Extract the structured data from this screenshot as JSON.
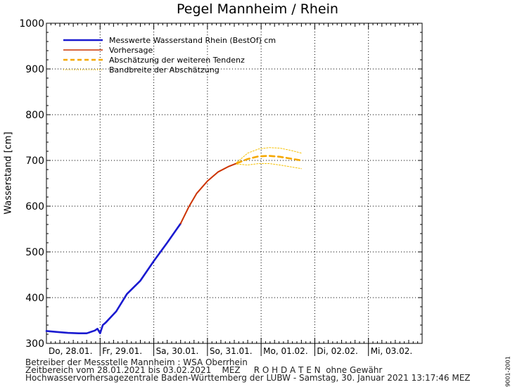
{
  "title": "Pegel Mannheim / Rhein",
  "footer": {
    "line1": "Betreiber der Messstelle Mannheim : WSA Oberrhein",
    "line2": "Zeitbereich vom 28.01.2021 bis 03.02.2021    MEZ     R O H D A T E N  ohne Gewähr",
    "line3": "Hochwasservorhersagezentrale Baden-Württemberg der LUBW - Samstag, 30. Januar 2021 13:17:46 MEZ"
  },
  "side_code": "9001-2001",
  "chart_data": {
    "type": "line",
    "title": "Pegel Mannheim / Rhein",
    "ylabel": "Wasserstand [cm]",
    "xlabel": "",
    "ylim": [
      300,
      1000
    ],
    "yticks": [
      300,
      400,
      500,
      600,
      700,
      800,
      900,
      1000
    ],
    "xlim": [
      0,
      7
    ],
    "x_unit": "days from Do, 28.01. 00:00",
    "day_labels": [
      "Do, 28.01.",
      "Fr, 29.01.",
      "Sa, 30.01.",
      "So, 31.01.",
      "Mo, 01.02.",
      "Di, 02.02.",
      "Mi, 03.02."
    ],
    "grid": true,
    "legend_position": "top-left",
    "legend": [
      {
        "label": "Messwerte Wasserstand Rhein (BestOf)   cm",
        "style": "solid-thick",
        "color": "#1a1ad0"
      },
      {
        "label": "Vorhersage",
        "style": "solid",
        "color": "#cc3300"
      },
      {
        "label": "Abschätzung der weiteren Tendenz",
        "style": "dashed",
        "color": "#f5a800"
      },
      {
        "label": "Bandbreite der Abschätzung",
        "style": "dotted",
        "color": "#f5c000"
      }
    ],
    "series": [
      {
        "name": "Messwerte Wasserstand Rhein (BestOf)   cm",
        "color": "#1a1ad0",
        "x": [
          0,
          0.2,
          0.4,
          0.6,
          0.75,
          0.9,
          0.95,
          1.0,
          1.05,
          1.1,
          1.3,
          1.5,
          1.75,
          2.0,
          2.25,
          2.5
        ],
        "y": [
          327,
          325,
          323,
          322,
          322,
          328,
          332,
          322,
          340,
          345,
          370,
          408,
          437,
          480,
          520,
          562
        ]
      },
      {
        "name": "Vorhersage",
        "color": "#cc3300",
        "x": [
          2.5,
          2.65,
          2.8,
          3.0,
          3.2,
          3.4,
          3.55
        ],
        "y": [
          562,
          598,
          628,
          655,
          675,
          687,
          694
        ]
      },
      {
        "name": "Abschätzung der weiteren Tendenz",
        "color": "#f5a800",
        "x": [
          3.55,
          3.75,
          3.95,
          4.15,
          4.35,
          4.55,
          4.75
        ],
        "y": [
          694,
          703,
          709,
          710,
          708,
          704,
          700
        ]
      },
      {
        "name": "Bandbreite der Abschätzung (oben)",
        "color": "#f5c000",
        "x": [
          3.55,
          3.75,
          3.95,
          4.15,
          4.35,
          4.55,
          4.75
        ],
        "y": [
          696,
          716,
          725,
          728,
          727,
          722,
          716
        ]
      },
      {
        "name": "Bandbreite der Abschätzung (unten)",
        "color": "#f5c000",
        "x": [
          3.55,
          3.75,
          3.95,
          4.15,
          4.35,
          4.55,
          4.75
        ],
        "y": [
          692,
          690,
          693,
          693,
          690,
          686,
          682
        ]
      }
    ]
  }
}
